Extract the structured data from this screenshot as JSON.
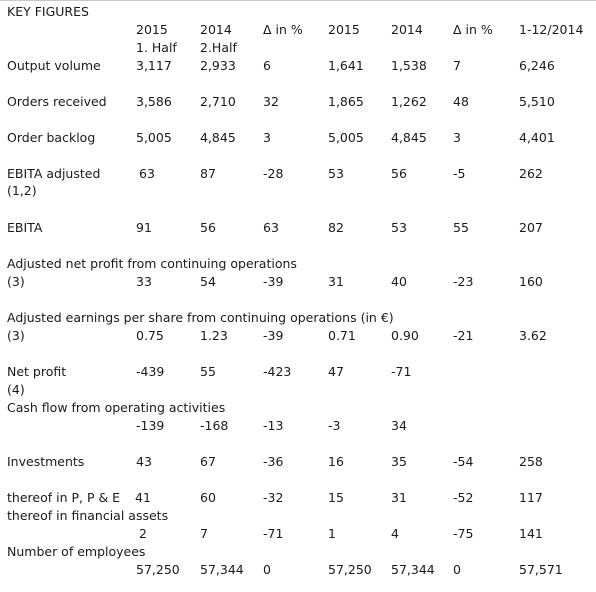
{
  "title": "KEY FIGURES",
  "headers": {
    "c1": "2015",
    "c1_sub": "1. Half",
    "c2": "2014",
    "c2_sub": "2.Half",
    "c3": "Δ in %",
    "c4": "2015",
    "c5": "2014",
    "c6": "Δ in %",
    "c7": "1-12/2014"
  },
  "rows": {
    "output_volume": {
      "label": "Output volume",
      "v": [
        "3,117",
        "2,933",
        "6",
        "1,641",
        "1,538",
        "7",
        "6,246"
      ]
    },
    "orders_received": {
      "label": "Orders received",
      "v": [
        "3,586",
        "2,710",
        "32",
        "1,865",
        "1,262",
        "48",
        "5,510"
      ]
    },
    "order_backlog": {
      "label": "Order backlog",
      "v": [
        "5,005",
        "4,845",
        "3",
        "5,005",
        "4,845",
        "3",
        "4,401"
      ]
    },
    "ebita_adjusted": {
      "label": "EBITA adjusted",
      "label2": "(1,2)",
      "v": [
        "63",
        "87",
        "-28",
        "53",
        "56",
        "-5",
        "262"
      ]
    },
    "ebita": {
      "label": "EBITA",
      "v": [
        "91",
        "56",
        "63",
        "82",
        "53",
        "55",
        "207"
      ]
    },
    "adj_net_profit": {
      "label": "Adjusted net profit from continuing operations",
      "label2": "(3)",
      "v": [
        "33",
        "54",
        "-39",
        "31",
        "40",
        "-23",
        "160"
      ]
    },
    "adj_eps": {
      "label": "Adjusted earnings per share from continuing operations  (in €)",
      "label2": "(3)",
      "v": [
        "0.75",
        "1.23",
        "-39",
        "0.71",
        "0.90",
        "-21",
        "3.62"
      ]
    },
    "net_profit": {
      "label": "Net profit",
      "label2": "(4)",
      "v": [
        "-439",
        "55",
        "-423",
        "47",
        "-71"
      ]
    },
    "cash_flow": {
      "label": "Cash flow from operating activities",
      "v": [
        "-139",
        "-168",
        "-13",
        "-3",
        "34"
      ]
    },
    "investments": {
      "label": "Investments",
      "v": [
        "43",
        "67",
        "-36",
        "16",
        "35",
        "-54",
        "258"
      ]
    },
    "ppe": {
      "label": "thereof in  P, P & E",
      "v": [
        "41",
        "60",
        "-32",
        "15",
        "31",
        "-52",
        "117"
      ]
    },
    "financial_assets": {
      "label": "thereof in  financial assets",
      "v": [
        "2",
        "7",
        "-71",
        "1",
        "4",
        "-75",
        "141"
      ]
    },
    "employees": {
      "label": "Number of employees",
      "v": [
        "57,250",
        "57,344",
        "0",
        "57,250",
        "57,344",
        "0",
        "57,571"
      ]
    }
  }
}
